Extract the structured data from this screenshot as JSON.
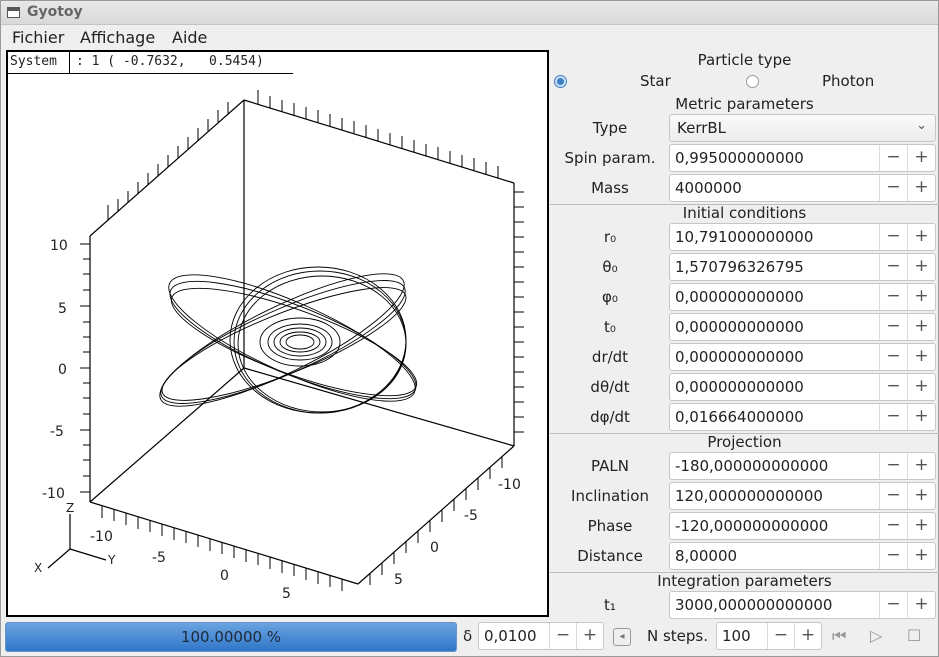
{
  "window": {
    "title": "Gyotoy"
  },
  "menu": [
    "Fichier",
    "Affichage",
    "Aide"
  ],
  "coord": {
    "system": "System",
    "value": ": 1 ( -0.7632,   0.5454)"
  },
  "plot_ticks": {
    "z": [
      "10",
      "5",
      "0",
      "-5",
      "-10"
    ],
    "left": [
      "-10",
      "-5",
      "0",
      "5"
    ],
    "right": [
      "-10",
      "-5",
      "0",
      "5"
    ],
    "axes": {
      "z": "Z",
      "y": "Y",
      "x": "X"
    }
  },
  "particle": {
    "title": "Particle type",
    "star": "Star",
    "photon": "Photon",
    "selected": "Star"
  },
  "metric": {
    "title": "Metric parameters",
    "type_label": "Type",
    "type_value": "KerrBL",
    "spin_label": "Spin param.",
    "spin_value": "0,995000000000",
    "mass_label": "Mass",
    "mass_value": "4000000"
  },
  "initial": {
    "title": "Initial conditions",
    "rows": [
      {
        "label": "r₀",
        "value": "10,791000000000"
      },
      {
        "label": "θ₀",
        "value": "1,570796326795"
      },
      {
        "label": "φ₀",
        "value": "0,000000000000"
      },
      {
        "label": "t₀",
        "value": "0,000000000000"
      },
      {
        "label": "dr/dt",
        "value": "0,000000000000"
      },
      {
        "label": "dθ/dt",
        "value": "0,000000000000"
      },
      {
        "label": "dφ/dt",
        "value": "0,016664000000"
      }
    ]
  },
  "projection": {
    "title": "Projection",
    "rows": [
      {
        "label": "PALN",
        "value": "-180,000000000000"
      },
      {
        "label": "Inclination",
        "value": "120,000000000000"
      },
      {
        "label": "Phase",
        "value": "-120,000000000000"
      },
      {
        "label": "Distance",
        "value": "8,00000"
      }
    ]
  },
  "integration": {
    "title": "Integration parameters",
    "t1_label": "t₁",
    "t1_value": "3000,000000000000"
  },
  "bottom": {
    "progress_text": "100.00000 %",
    "progress": 1.0,
    "delta_label": "δ",
    "delta_value": "0,0100",
    "nsteps_label": "N steps.",
    "nsteps_value": "100",
    "minus": "−",
    "plus": "+"
  }
}
